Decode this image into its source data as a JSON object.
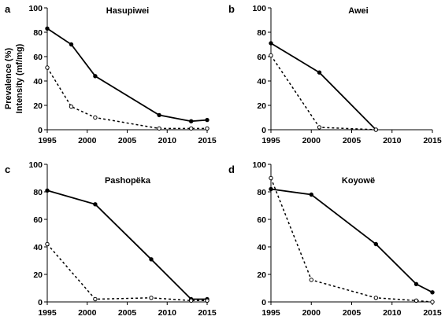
{
  "figure": {
    "ylabel_line1": "Prevalence (%)",
    "ylabel_line2": "Intensity (mf/mg)"
  },
  "chart_data": [
    {
      "type": "line",
      "panel": "a",
      "title": "Hasupiwei",
      "xlim": [
        1995,
        2015
      ],
      "ylim": [
        0,
        100
      ],
      "xticks": [
        1995,
        2000,
        2005,
        2010,
        2015
      ],
      "yticks": [
        0,
        20,
        40,
        60,
        80,
        100
      ],
      "series": [
        {
          "style": "solid",
          "marker": "filled-circle",
          "color": "#000000",
          "x": [
            1995,
            1998,
            2001,
            2009,
            2013,
            2015
          ],
          "y": [
            83,
            70,
            44,
            12,
            7,
            8
          ]
        },
        {
          "style": "dashed",
          "marker": "open-circle",
          "color": "#000000",
          "x": [
            1995,
            1998,
            2001,
            2009,
            2013,
            2015
          ],
          "y": [
            51,
            19,
            10,
            1,
            1,
            1
          ]
        }
      ]
    },
    {
      "type": "line",
      "panel": "b",
      "title": "Awei",
      "xlim": [
        1995,
        2015
      ],
      "ylim": [
        0,
        100
      ],
      "xticks": [
        1995,
        2000,
        2005,
        2010,
        2015
      ],
      "yticks": [
        0,
        20,
        40,
        60,
        80,
        100
      ],
      "series": [
        {
          "style": "solid",
          "marker": "filled-circle",
          "color": "#000000",
          "x": [
            1995,
            2001,
            2008
          ],
          "y": [
            71,
            47,
            0
          ]
        },
        {
          "style": "dashed",
          "marker": "open-circle",
          "color": "#000000",
          "x": [
            1995,
            2001,
            2008
          ],
          "y": [
            61,
            2,
            0
          ]
        }
      ]
    },
    {
      "type": "line",
      "panel": "c",
      "title": "Pashopëka",
      "xlim": [
        1995,
        2015
      ],
      "ylim": [
        0,
        100
      ],
      "xticks": [
        1995,
        2000,
        2005,
        2010,
        2015
      ],
      "yticks": [
        0,
        20,
        40,
        60,
        80,
        100
      ],
      "series": [
        {
          "style": "solid",
          "marker": "filled-circle",
          "color": "#000000",
          "x": [
            1995,
            2001,
            2008,
            2013,
            2015
          ],
          "y": [
            81,
            71,
            31,
            2,
            2
          ]
        },
        {
          "style": "dashed",
          "marker": "open-circle",
          "color": "#000000",
          "x": [
            1995,
            2001,
            2008,
            2013,
            2015
          ],
          "y": [
            42,
            2,
            3,
            1,
            1
          ]
        }
      ]
    },
    {
      "type": "line",
      "panel": "d",
      "title": "Koyowë",
      "xlim": [
        1995,
        2015
      ],
      "ylim": [
        0,
        100
      ],
      "xticks": [
        1995,
        2000,
        2005,
        2010,
        2015
      ],
      "yticks": [
        0,
        20,
        40,
        60,
        80,
        100
      ],
      "series": [
        {
          "style": "solid",
          "marker": "filled-circle",
          "color": "#000000",
          "x": [
            1995,
            2000,
            2008,
            2013,
            2015
          ],
          "y": [
            82,
            78,
            42,
            13,
            7
          ]
        },
        {
          "style": "dashed",
          "marker": "open-circle",
          "color": "#000000",
          "x": [
            1995,
            2000,
            2008,
            2013,
            2015
          ],
          "y": [
            90,
            16,
            3,
            1,
            0
          ]
        }
      ]
    }
  ]
}
